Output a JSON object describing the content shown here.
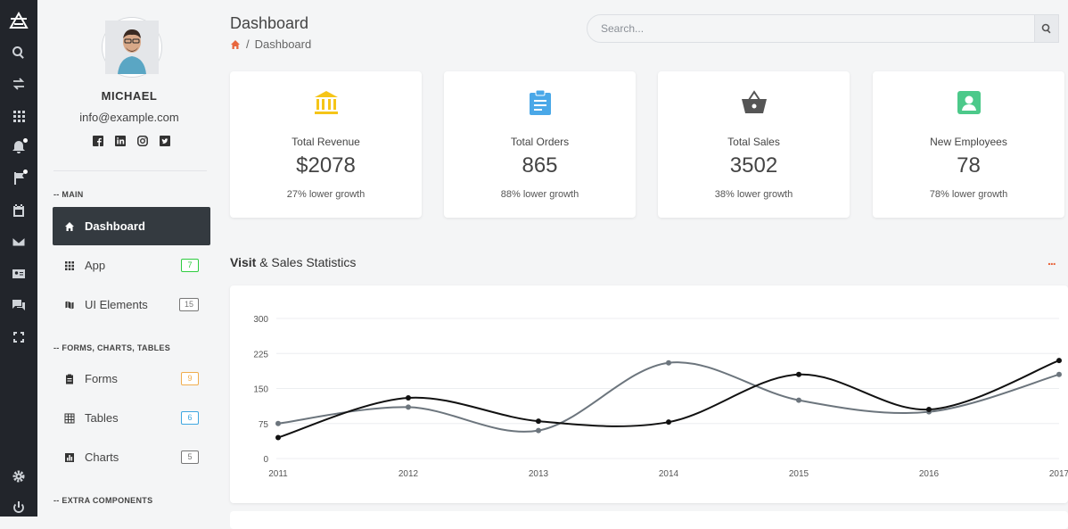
{
  "user": {
    "name": "MICHAEL",
    "email": "info@example.com"
  },
  "sidebar": {
    "sections": [
      "-- MAIN",
      "-- FORMS, CHARTS, TABLES",
      "-- EXTRA COMPONENTS"
    ],
    "items": [
      {
        "label": "Dashboard",
        "badge": "",
        "icon": "home-icon",
        "active": true
      },
      {
        "label": "App",
        "badge": "7",
        "badge_color": "#2ecc40",
        "icon": "grid-icon"
      },
      {
        "label": "UI Elements",
        "badge": "15",
        "badge_color": "#777777",
        "icon": "map-icon"
      },
      {
        "label": "Forms",
        "badge": "9",
        "badge_color": "#f0ad4e",
        "icon": "clipboard-icon"
      },
      {
        "label": "Tables",
        "badge": "6",
        "badge_color": "#3ea6e0",
        "icon": "table-icon"
      },
      {
        "label": "Charts",
        "badge": "5",
        "badge_color": "#777777",
        "icon": "bar-chart-icon"
      }
    ]
  },
  "header": {
    "title": "Dashboard",
    "breadcrumb": {
      "separator": "/",
      "current": "Dashboard"
    },
    "search_placeholder": "Search..."
  },
  "cards": [
    {
      "label": "Total Revenue",
      "value": "$2078",
      "sub": "27% lower growth",
      "icon": "bank-icon",
      "color": "#f5c518"
    },
    {
      "label": "Total Orders",
      "value": "865",
      "sub": "88% lower growth",
      "icon": "clipboard-list-icon",
      "color": "#4aa8e8"
    },
    {
      "label": "Total Sales",
      "value": "3502",
      "sub": "38% lower growth",
      "icon": "basket-icon",
      "color": "#555555"
    },
    {
      "label": "New Employees",
      "value": "78",
      "sub": "78% lower growth",
      "icon": "contact-card-icon",
      "color": "#4cc98a"
    }
  ],
  "stats": {
    "title_bold": "Visit",
    "title_rest": " & Sales Statistics",
    "more": "..."
  },
  "chart_data": {
    "type": "line",
    "categories": [
      "2011",
      "2012",
      "2013",
      "2014",
      "2015",
      "2016",
      "2017"
    ],
    "y_ticks": [
      "0",
      "75",
      "150",
      "225",
      "300"
    ],
    "ylim": [
      0,
      300
    ],
    "grid": true,
    "series": [
      {
        "values": [
          45,
          130,
          80,
          78,
          180,
          105,
          210
        ],
        "color": "#111111"
      },
      {
        "values": [
          75,
          110,
          60,
          205,
          125,
          100,
          180
        ],
        "color": "#6c757d"
      }
    ]
  }
}
